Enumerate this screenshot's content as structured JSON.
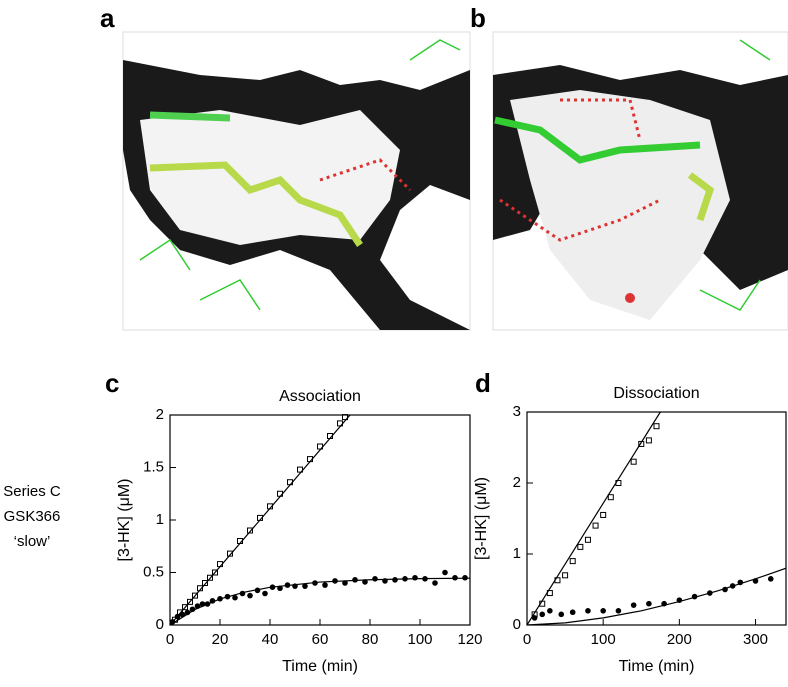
{
  "panel_labels": [
    "a",
    "b"
  ],
  "side_label": [
    "Series C",
    "GSK366",
    "‘slow’"
  ],
  "chart_data": [
    {
      "type": "scatter",
      "panel": "c",
      "title": "Association",
      "x_label": "Time (min)",
      "y_label": "[3-HK] (μM)",
      "xlim": [
        0,
        120
      ],
      "ylim": [
        0,
        2
      ],
      "xticks": [
        0,
        20,
        40,
        60,
        80,
        100,
        120
      ],
      "yticks": [
        0,
        0.5,
        1,
        1.5,
        2
      ],
      "series": [
        {
          "marker": "open-square",
          "color": "#000000",
          "x": [
            2,
            4,
            6,
            8,
            10,
            12,
            14,
            16,
            18,
            20,
            24,
            28,
            32,
            36,
            40,
            44,
            48,
            52,
            56,
            60,
            64,
            68,
            70
          ],
          "values": [
            0.05,
            0.12,
            0.17,
            0.22,
            0.28,
            0.35,
            0.4,
            0.45,
            0.5,
            0.58,
            0.68,
            0.8,
            0.9,
            1.02,
            1.13,
            1.25,
            1.36,
            1.48,
            1.58,
            1.7,
            1.8,
            1.92,
            1.98
          ]
        },
        {
          "marker": "filled-circle",
          "color": "#000000",
          "x": [
            1,
            3,
            5,
            7,
            9,
            11,
            13,
            15,
            17,
            20,
            23,
            26,
            29,
            32,
            35,
            38,
            41,
            44,
            47,
            50,
            54,
            58,
            62,
            66,
            70,
            74,
            78,
            82,
            86,
            90,
            94,
            98,
            102,
            106,
            110,
            114,
            118
          ],
          "values": [
            0.03,
            0.08,
            0.1,
            0.12,
            0.15,
            0.18,
            0.2,
            0.2,
            0.23,
            0.25,
            0.27,
            0.26,
            0.3,
            0.28,
            0.33,
            0.3,
            0.36,
            0.35,
            0.38,
            0.37,
            0.37,
            0.4,
            0.38,
            0.42,
            0.4,
            0.43,
            0.41,
            0.44,
            0.42,
            0.43,
            0.44,
            0.45,
            0.44,
            0.4,
            0.5,
            0.45,
            0.45
          ]
        },
        {
          "marker": "line",
          "color": "#000000",
          "x": [
            0,
            72
          ],
          "values": [
            0,
            2
          ]
        },
        {
          "marker": "line",
          "color": "#000000",
          "x": [
            0,
            10,
            20,
            30,
            40,
            60,
            80,
            100,
            120
          ],
          "values": [
            0,
            0.148,
            0.248,
            0.314,
            0.359,
            0.409,
            0.431,
            0.442,
            0.446
          ]
        }
      ]
    },
    {
      "type": "scatter",
      "panel": "d",
      "title": "Dissociation",
      "x_label": "Time (min)",
      "y_label": "[3-HK] (μM)",
      "xlim": [
        0,
        340
      ],
      "ylim": [
        0,
        3
      ],
      "xticks": [
        0,
        100,
        200,
        300
      ],
      "yticks": [
        0,
        1,
        2,
        3
      ],
      "series": [
        {
          "marker": "open-square",
          "color": "#000000",
          "x": [
            10,
            20,
            30,
            40,
            50,
            60,
            70,
            80,
            90,
            100,
            110,
            120,
            140,
            150,
            160,
            170
          ],
          "values": [
            0.15,
            0.3,
            0.45,
            0.63,
            0.7,
            0.9,
            1.1,
            1.2,
            1.4,
            1.55,
            1.8,
            2.0,
            2.3,
            2.55,
            2.6,
            2.8
          ]
        },
        {
          "marker": "filled-circle",
          "color": "#000000",
          "x": [
            10,
            20,
            30,
            45,
            60,
            80,
            100,
            120,
            140,
            160,
            180,
            200,
            220,
            240,
            260,
            270,
            280,
            300,
            320
          ],
          "values": [
            0.1,
            0.15,
            0.2,
            0.15,
            0.18,
            0.2,
            0.2,
            0.2,
            0.28,
            0.3,
            0.3,
            0.35,
            0.4,
            0.45,
            0.5,
            0.55,
            0.6,
            0.62,
            0.65
          ]
        },
        {
          "marker": "line",
          "color": "#000000",
          "x": [
            0,
            175
          ],
          "values": [
            0,
            3
          ]
        },
        {
          "marker": "line",
          "color": "#000000",
          "x": [
            0,
            50,
            100,
            150,
            200,
            250,
            300,
            340
          ],
          "values": [
            0,
            0.03,
            0.1,
            0.2,
            0.33,
            0.48,
            0.65,
            0.8
          ]
        }
      ]
    }
  ]
}
